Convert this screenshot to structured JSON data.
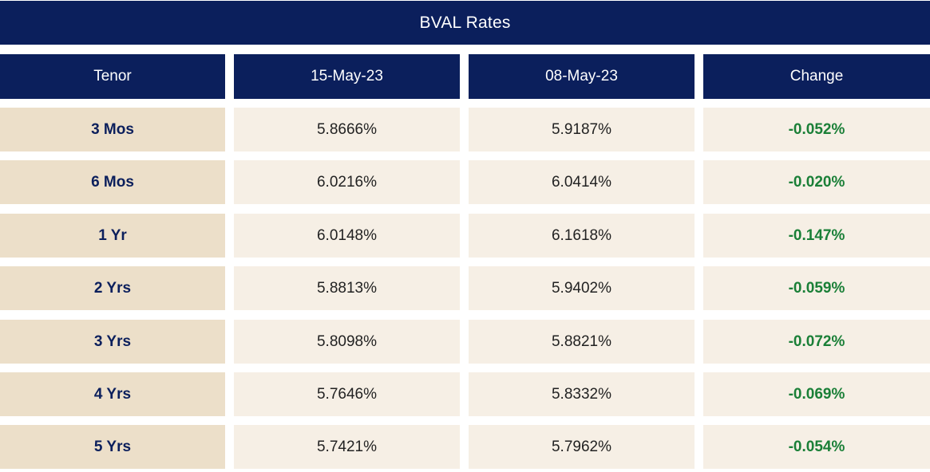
{
  "colors": {
    "navy": "#0b1f5c",
    "tan": "#ecdfc9",
    "cream": "#f6efe5",
    "green": "#1a7f37"
  },
  "table": {
    "title": "BVAL Rates",
    "headers": [
      "Tenor",
      "15-May-23",
      "08-May-23",
      "Change"
    ],
    "rows": [
      {
        "tenor": "3 Mos",
        "current": "5.8666%",
        "previous": "5.9187%",
        "change": "-0.052%"
      },
      {
        "tenor": "6 Mos",
        "current": "6.0216%",
        "previous": "6.0414%",
        "change": "-0.020%"
      },
      {
        "tenor": "1 Yr",
        "current": "6.0148%",
        "previous": "6.1618%",
        "change": "-0.147%"
      },
      {
        "tenor": "2 Yrs",
        "current": "5.8813%",
        "previous": "5.9402%",
        "change": "-0.059%"
      },
      {
        "tenor": "3 Yrs",
        "current": "5.8098%",
        "previous": "5.8821%",
        "change": "-0.072%"
      },
      {
        "tenor": "4 Yrs",
        "current": "5.7646%",
        "previous": "5.8332%",
        "change": "-0.069%"
      },
      {
        "tenor": "5 Yrs",
        "current": "5.7421%",
        "previous": "5.7962%",
        "change": "-0.054%"
      }
    ]
  }
}
